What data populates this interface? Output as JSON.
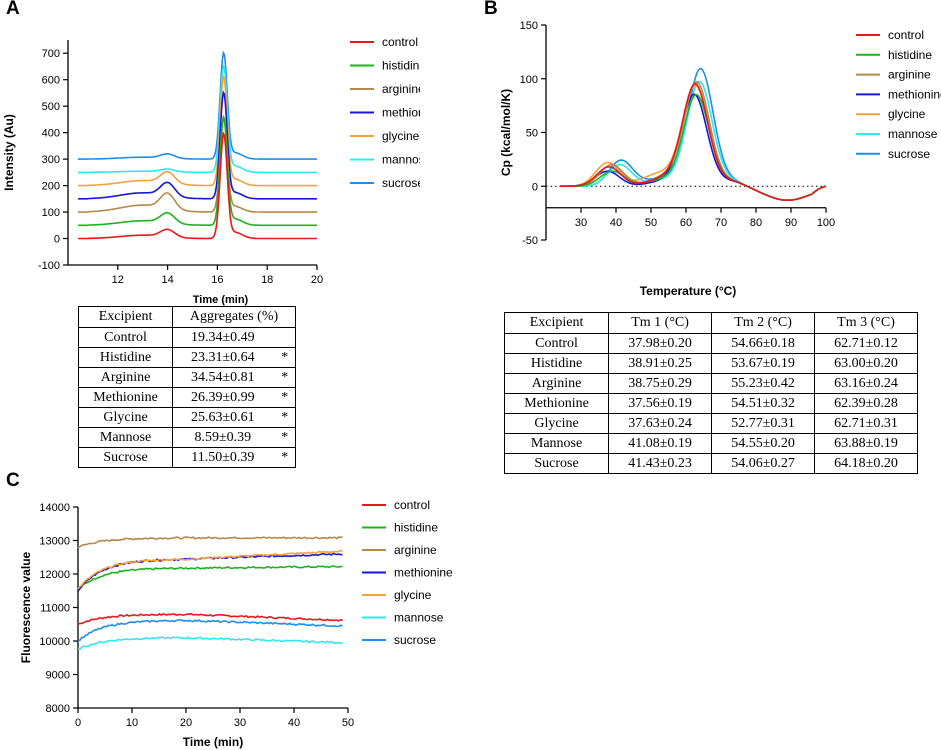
{
  "panels": {
    "a": "A",
    "b": "B",
    "c": "C"
  },
  "colors": {
    "control": "#e8191c",
    "histidine": "#1db31d",
    "arginine": "#b5894b",
    "methionine": "#1717d6",
    "glycine": "#f3a23c",
    "mannose": "#2fe8f0",
    "sucrose": "#1e8fe8"
  },
  "legend": [
    "control",
    "histidine",
    "arginine",
    "methionine",
    "glycine",
    "mannose",
    "sucrose"
  ],
  "chart_data": [
    {
      "id": "A",
      "type": "line",
      "title": "",
      "xlabel": "Time (min)",
      "ylabel": "Intensity (Au)",
      "xlim": [
        10,
        20
      ],
      "ylim": [
        -100,
        750
      ],
      "xticks": [
        12,
        14,
        16,
        18,
        20
      ],
      "yticks": [
        -100,
        0,
        100,
        200,
        300,
        400,
        500,
        600,
        700
      ],
      "series": [
        {
          "name": "control",
          "baseline": 0,
          "peak14": 28,
          "peak16": 390
        },
        {
          "name": "histidine",
          "baseline": 50,
          "peak14": 38,
          "peak16": 400
        },
        {
          "name": "arginine",
          "baseline": 100,
          "peak14": 58,
          "peak16": 355
        },
        {
          "name": "methionine",
          "baseline": 150,
          "peak14": 50,
          "peak16": 395
        },
        {
          "name": "glycine",
          "baseline": 200,
          "peak14": 42,
          "peak16": 405
        },
        {
          "name": "mannose",
          "baseline": 250,
          "peak14": 10,
          "peak16": 395
        },
        {
          "name": "sucrose",
          "baseline": 300,
          "peak14": 16,
          "peak16": 395
        }
      ]
    },
    {
      "id": "B",
      "type": "line",
      "title": "",
      "xlabel": "Temperature (°C)",
      "ylabel": "Cp (kcal/mol/K)",
      "xlim": [
        20,
        100
      ],
      "ylim": [
        -50,
        150
      ],
      "xticks": [
        30,
        40,
        50,
        60,
        70,
        80,
        90,
        100
      ],
      "yticks": [
        -50,
        0,
        50,
        100,
        150
      ],
      "series": [
        {
          "name": "control",
          "tm1": 37.98,
          "h1": 18,
          "tm2": 54.66,
          "h2": 8,
          "tm3": 62.71,
          "h3": 93
        },
        {
          "name": "histidine",
          "tm1": 38.91,
          "h1": 14,
          "tm2": 53.67,
          "h2": 6,
          "tm3": 63.0,
          "h3": 84
        },
        {
          "name": "arginine",
          "tm1": 38.75,
          "h1": 20,
          "tm2": 55.23,
          "h2": 10,
          "tm3": 63.16,
          "h3": 94
        },
        {
          "name": "methionine",
          "tm1": 37.56,
          "h1": 14,
          "tm2": 54.51,
          "h2": 5,
          "tm3": 62.39,
          "h3": 84
        },
        {
          "name": "glycine",
          "tm1": 37.63,
          "h1": 22,
          "tm2": 52.77,
          "h2": 12,
          "tm3": 62.71,
          "h3": 92
        },
        {
          "name": "mannose",
          "tm1": 41.08,
          "h1": 20,
          "tm2": 54.55,
          "h2": 6,
          "tm3": 63.88,
          "h3": 96
        },
        {
          "name": "sucrose",
          "tm1": 41.43,
          "h1": 24,
          "tm2": 54.06,
          "h2": 8,
          "tm3": 64.18,
          "h3": 108
        }
      ]
    },
    {
      "id": "C",
      "type": "line",
      "title": "",
      "xlabel": "Time (min)",
      "ylabel": "Fluorescence value",
      "xlim": [
        0,
        50
      ],
      "ylim": [
        8000,
        14000
      ],
      "xticks": [
        0,
        10,
        20,
        30,
        40,
        50
      ],
      "yticks": [
        8000,
        9000,
        10000,
        11000,
        12000,
        13000,
        14000
      ],
      "series": [
        {
          "name": "control",
          "start": 10500,
          "plateau": 10800,
          "end": 10620
        },
        {
          "name": "histidine",
          "start": 11550,
          "plateau": 12180,
          "end": 12220
        },
        {
          "name": "arginine",
          "start": 12800,
          "plateau": 13080,
          "end": 13080
        },
        {
          "name": "methionine",
          "start": 11500,
          "plateau": 12450,
          "end": 12600
        },
        {
          "name": "glycine",
          "start": 11550,
          "plateau": 12450,
          "end": 12680
        },
        {
          "name": "mannose",
          "start": 9750,
          "plateau": 10100,
          "end": 9950
        },
        {
          "name": "sucrose",
          "start": 10000,
          "plateau": 10620,
          "end": 10450
        }
      ]
    }
  ],
  "tableA": {
    "headers": [
      "Excipient",
      "Aggregates (%)"
    ],
    "rows": [
      {
        "excipient": "Control",
        "value": "19.34±0.49",
        "mark": ""
      },
      {
        "excipient": "Histidine",
        "value": "23.31±0.64",
        "mark": "*"
      },
      {
        "excipient": "Arginine",
        "value": "34.54±0.81",
        "mark": "*"
      },
      {
        "excipient": "Methionine",
        "value": "26.39±0.99",
        "mark": "*"
      },
      {
        "excipient": "Glycine",
        "value": "25.63±0.61",
        "mark": "*"
      },
      {
        "excipient": "Mannose",
        "value": "8.59±0.39",
        "mark": "*"
      },
      {
        "excipient": "Sucrose",
        "value": "11.50±0.39",
        "mark": "*"
      }
    ]
  },
  "tableB": {
    "headers": [
      "Excipient",
      "Tm 1 (°C)",
      "Tm 2 (°C)",
      "Tm 3 (°C)"
    ],
    "rows": [
      [
        "Control",
        "37.98±0.20",
        "54.66±0.18",
        "62.71±0.12"
      ],
      [
        "Histidine",
        "38.91±0.25",
        "53.67±0.19",
        "63.00±0.20"
      ],
      [
        "Arginine",
        "38.75±0.29",
        "55.23±0.42",
        "63.16±0.24"
      ],
      [
        "Methionine",
        "37.56±0.19",
        "54.51±0.32",
        "62.39±0.28"
      ],
      [
        "Glycine",
        "37.63±0.24",
        "52.77±0.31",
        "62.71±0.31"
      ],
      [
        "Mannose",
        "41.08±0.19",
        "54.55±0.20",
        "63.88±0.19"
      ],
      [
        "Sucrose",
        "41.43±0.23",
        "54.06±0.27",
        "64.18±0.20"
      ]
    ]
  }
}
